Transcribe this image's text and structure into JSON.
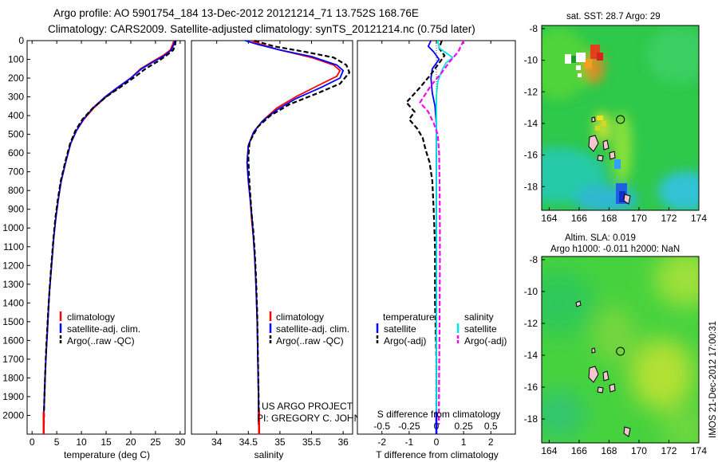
{
  "header": {
    "line1": "Argo profile: AO 5901754_184 13-Dec-2012 20121214_71 13.752S 168.76E",
    "line2": "Climatology: CARS2009. Satellite-adjusted climatology: synTS_20121214.nc (0.75d later)"
  },
  "credit": {
    "line1": "US ARGO PROJECT",
    "line2": "PI: GREGORY C. JOHNSON"
  },
  "side_stamp": "IMOS 21-Dec-2012 17:00:31",
  "colors": {
    "climatology": "#ff0000",
    "satellite": "#0000ff",
    "argo": "#000000",
    "satellite_salinity": "#00e5e5",
    "argo_salinity": "#ff00ff"
  },
  "chart_data": [
    {
      "type": "line",
      "panel": "temperature",
      "xlabel": "temperature (deg C)",
      "ylabel": "",
      "xlim": [
        -1,
        31
      ],
      "ylim": [
        2100,
        0
      ],
      "xticks": [
        0,
        5,
        10,
        15,
        20,
        25,
        30
      ],
      "yticks": [
        0,
        100,
        200,
        300,
        400,
        500,
        600,
        700,
        800,
        900,
        1000,
        1100,
        1200,
        1300,
        1400,
        1500,
        1600,
        1700,
        1800,
        1900,
        2000
      ],
      "legend": [
        "climatology",
        "satellite-adj. clim.",
        "Argo(..raw -QC)"
      ],
      "series": [
        {
          "name": "climatology",
          "color": "#ff0000",
          "points": [
            [
              28.7,
              0
            ],
            [
              28.5,
              20
            ],
            [
              28.0,
              50
            ],
            [
              26.5,
              80
            ],
            [
              24.5,
              110
            ],
            [
              22.0,
              150
            ],
            [
              20.0,
              200
            ],
            [
              17.5,
              250
            ],
            [
              15.0,
              300
            ],
            [
              12.5,
              360
            ],
            [
              10.5,
              420
            ],
            [
              9.0,
              480
            ],
            [
              7.8,
              550
            ],
            [
              6.8,
              650
            ],
            [
              5.9,
              750
            ],
            [
              5.3,
              850
            ],
            [
              4.8,
              950
            ],
            [
              4.4,
              1050
            ],
            [
              4.1,
              1150
            ],
            [
              3.8,
              1250
            ],
            [
              3.5,
              1350
            ],
            [
              3.3,
              1450
            ],
            [
              3.1,
              1550
            ],
            [
              2.9,
              1650
            ],
            [
              2.7,
              1750
            ],
            [
              2.6,
              1850
            ],
            [
              2.45,
              1950
            ],
            [
              2.35,
              2050
            ]
          ]
        },
        {
          "name": "satellite-adj. clim.",
          "color": "#0000ff",
          "points": [
            [
              28.9,
              0
            ],
            [
              28.7,
              20
            ],
            [
              28.2,
              50
            ],
            [
              26.8,
              80
            ],
            [
              24.8,
              110
            ],
            [
              22.2,
              150
            ],
            [
              20.0,
              200
            ],
            [
              17.3,
              250
            ],
            [
              14.8,
              300
            ],
            [
              12.3,
              360
            ],
            [
              10.4,
              420
            ],
            [
              9.0,
              480
            ],
            [
              7.8,
              550
            ],
            [
              6.8,
              650
            ],
            [
              5.9,
              750
            ],
            [
              5.3,
              850
            ],
            [
              4.8,
              950
            ],
            [
              4.4,
              1050
            ],
            [
              4.1,
              1150
            ],
            [
              3.8,
              1250
            ],
            [
              3.5,
              1350
            ],
            [
              3.3,
              1450
            ],
            [
              3.1,
              1550
            ],
            [
              2.9,
              1650
            ],
            [
              2.7,
              1750
            ],
            [
              2.55,
              1850
            ],
            [
              2.45,
              1950
            ],
            [
              2.3,
              2050
            ]
          ]
        },
        {
          "name": "Argo(..raw -QC)",
          "color": "#000000",
          "dash": true,
          "points": [
            [
              29.1,
              0
            ],
            [
              29.0,
              20
            ],
            [
              28.6,
              50
            ],
            [
              27.2,
              80
            ],
            [
              25.5,
              110
            ],
            [
              23.0,
              150
            ],
            [
              20.5,
              200
            ],
            [
              17.8,
              250
            ],
            [
              15.0,
              300
            ],
            [
              12.3,
              360
            ],
            [
              10.2,
              420
            ],
            [
              8.8,
              480
            ],
            [
              7.7,
              550
            ],
            [
              6.7,
              650
            ],
            [
              5.8,
              750
            ],
            [
              5.2,
              850
            ],
            [
              4.7,
              950
            ],
            [
              4.35,
              1050
            ],
            [
              4.05,
              1150
            ],
            [
              3.75,
              1250
            ],
            [
              3.5,
              1350
            ],
            [
              3.25,
              1450
            ],
            [
              3.05,
              1550
            ],
            [
              2.85,
              1650
            ],
            [
              2.7,
              1750
            ],
            [
              2.55,
              1850
            ],
            [
              2.45,
              1950
            ],
            [
              2.4,
              2050
            ]
          ]
        }
      ]
    },
    {
      "type": "line",
      "panel": "salinity",
      "xlabel": "salinity",
      "xlim": [
        33.6,
        36.15
      ],
      "ylim": [
        2100,
        0
      ],
      "xticks": [
        34,
        34.5,
        35,
        35.5,
        36
      ],
      "legend": [
        "climatology",
        "satellite-adj. clim.",
        "Argo(..raw -QC)"
      ],
      "series": [
        {
          "name": "climatology",
          "color": "#ff0000",
          "points": [
            [
              34.55,
              0
            ],
            [
              34.7,
              20
            ],
            [
              35.0,
              50
            ],
            [
              35.5,
              90
            ],
            [
              35.85,
              130
            ],
            [
              35.95,
              160
            ],
            [
              35.9,
              190
            ],
            [
              35.6,
              240
            ],
            [
              35.25,
              300
            ],
            [
              34.95,
              360
            ],
            [
              34.75,
              420
            ],
            [
              34.6,
              480
            ],
            [
              34.5,
              560
            ],
            [
              34.48,
              650
            ],
            [
              34.5,
              750
            ],
            [
              34.53,
              850
            ],
            [
              34.55,
              950
            ],
            [
              34.58,
              1050
            ],
            [
              34.6,
              1150
            ],
            [
              34.62,
              1300
            ],
            [
              34.64,
              1500
            ],
            [
              34.65,
              1700
            ],
            [
              34.66,
              1900
            ],
            [
              34.67,
              2050
            ]
          ]
        },
        {
          "name": "satellite-adj. clim.",
          "color": "#0000ff",
          "points": [
            [
              34.45,
              0
            ],
            [
              34.65,
              20
            ],
            [
              35.0,
              50
            ],
            [
              35.5,
              85
            ],
            [
              35.9,
              130
            ],
            [
              36.0,
              160
            ],
            [
              35.95,
              200
            ],
            [
              35.65,
              250
            ],
            [
              35.25,
              310
            ],
            [
              34.95,
              370
            ],
            [
              34.72,
              430
            ],
            [
              34.58,
              490
            ],
            [
              34.5,
              560
            ],
            [
              34.48,
              650
            ],
            [
              34.5,
              750
            ],
            [
              34.53,
              850
            ],
            [
              34.56,
              950
            ],
            [
              34.58,
              1050
            ],
            [
              34.6,
              1150
            ],
            [
              34.62,
              1300
            ],
            [
              34.64,
              1500
            ],
            [
              34.65,
              1700
            ],
            [
              34.66,
              1900
            ],
            [
              34.66,
              2050
            ]
          ]
        },
        {
          "name": "Argo(..raw -QC)",
          "color": "#000000",
          "dash": true,
          "points": [
            [
              34.6,
              0
            ],
            [
              34.9,
              30
            ],
            [
              35.4,
              60
            ],
            [
              35.85,
              90
            ],
            [
              36.05,
              130
            ],
            [
              36.1,
              170
            ],
            [
              35.95,
              230
            ],
            [
              35.6,
              280
            ],
            [
              35.15,
              340
            ],
            [
              34.85,
              400
            ],
            [
              34.65,
              460
            ],
            [
              34.52,
              540
            ],
            [
              34.5,
              620
            ],
            [
              34.51,
              720
            ],
            [
              34.53,
              820
            ],
            [
              34.55,
              920
            ],
            [
              34.58,
              1020
            ],
            [
              34.6,
              1120
            ],
            [
              34.62,
              1250
            ],
            [
              34.64,
              1450
            ],
            [
              34.65,
              1650
            ],
            [
              34.66,
              1850
            ],
            [
              34.67,
              2050
            ]
          ]
        }
      ]
    },
    {
      "type": "line",
      "panel": "difference",
      "xlabel": "T difference from climatology",
      "xlabel_top": "S difference from climatology",
      "xlim": [
        -2.9,
        2.9
      ],
      "ylim": [
        2100,
        0
      ],
      "xticks": [
        -2,
        -1,
        0,
        1,
        2
      ],
      "xticks_top": [
        -0.5,
        -0.25,
        0,
        0.25,
        0.5
      ],
      "legend_temperature_title": "temperature",
      "legend_salinity_title": "salinity",
      "legend": [
        "satellite",
        "Argo(-adj)",
        "satellite",
        "Argo(-adj)"
      ],
      "series": [
        {
          "name": "satellite",
          "group": "temperature",
          "color": "#0000ff",
          "points": [
            [
              -0.2,
              0
            ],
            [
              -0.3,
              30
            ],
            [
              -0.1,
              60
            ],
            [
              0.1,
              100
            ],
            [
              -0.15,
              150
            ],
            [
              -0.2,
              200
            ],
            [
              -0.15,
              280
            ],
            [
              -0.05,
              350
            ],
            [
              0.0,
              450
            ],
            [
              0.0,
              600
            ],
            [
              0.0,
              800
            ],
            [
              0.0,
              1000
            ],
            [
              0.0,
              1500
            ],
            [
              0.0,
              2050
            ]
          ]
        },
        {
          "name": "Argo(-adj)",
          "group": "temperature",
          "color": "#000000",
          "dash": true,
          "points": [
            [
              0.2,
              0
            ],
            [
              0.1,
              40
            ],
            [
              0.3,
              80
            ],
            [
              0.1,
              120
            ],
            [
              -0.2,
              180
            ],
            [
              -0.6,
              250
            ],
            [
              -1.1,
              330
            ],
            [
              -0.8,
              380
            ],
            [
              -1.0,
              420
            ],
            [
              -0.7,
              470
            ],
            [
              -0.5,
              520
            ],
            [
              -0.4,
              580
            ],
            [
              -0.25,
              650
            ],
            [
              -0.15,
              750
            ],
            [
              -0.1,
              900
            ],
            [
              -0.05,
              1100
            ],
            [
              -0.05,
              1400
            ],
            [
              0.0,
              1700
            ],
            [
              0.0,
              2050
            ]
          ]
        },
        {
          "name": "satellite",
          "group": "salinity",
          "color": "#00e5e5",
          "points": [
            [
              0.05,
              0
            ],
            [
              0.1,
              40
            ],
            [
              0.6,
              90
            ],
            [
              0.35,
              120
            ],
            [
              0.2,
              160
            ],
            [
              0.05,
              220
            ],
            [
              0.0,
              300
            ],
            [
              0.0,
              500
            ],
            [
              0.0,
              700
            ],
            [
              0.0,
              1000
            ],
            [
              0.0,
              1500
            ],
            [
              0.0,
              2050
            ]
          ]
        },
        {
          "name": "Argo(-adj)",
          "group": "salinity",
          "color": "#ff00ff",
          "dash": true,
          "points": [
            [
              1.0,
              0
            ],
            [
              0.8,
              60
            ],
            [
              0.5,
              110
            ],
            [
              0.2,
              170
            ],
            [
              -0.2,
              240
            ],
            [
              -0.6,
              330
            ],
            [
              -0.3,
              380
            ],
            [
              -0.1,
              440
            ],
            [
              0.05,
              500
            ],
            [
              0.1,
              600
            ],
            [
              0.12,
              800
            ],
            [
              0.13,
              1000
            ],
            [
              0.13,
              1200
            ],
            [
              0.12,
              1400
            ],
            [
              0.11,
              1600
            ],
            [
              0.1,
              1800
            ],
            [
              0.09,
              2050
            ]
          ]
        }
      ]
    },
    {
      "type": "heatmap",
      "panel": "sst_map",
      "title": "sat. SST: 28.7 Argo: 29",
      "xlim": [
        163.5,
        174
      ],
      "ylim": [
        -19.5,
        -7.8
      ],
      "xticks": [
        164,
        166,
        168,
        170,
        172,
        174
      ],
      "yticks": [
        -8,
        -10,
        -12,
        -14,
        -16,
        -18
      ],
      "float_marker": {
        "lon": 168.76,
        "lat": -13.752
      }
    },
    {
      "type": "heatmap",
      "panel": "sla_map",
      "title": "Altim. SLA: 0.019",
      "subtitle": "Argo h1000: -0.011 h2000: NaN",
      "xlim": [
        163.5,
        174
      ],
      "ylim": [
        -19.5,
        -7.8
      ],
      "xticks": [
        164,
        166,
        168,
        170,
        172,
        174
      ],
      "yticks": [
        -8,
        -10,
        -12,
        -14,
        -16,
        -18
      ],
      "float_marker": {
        "lon": 168.76,
        "lat": -13.752
      }
    }
  ]
}
